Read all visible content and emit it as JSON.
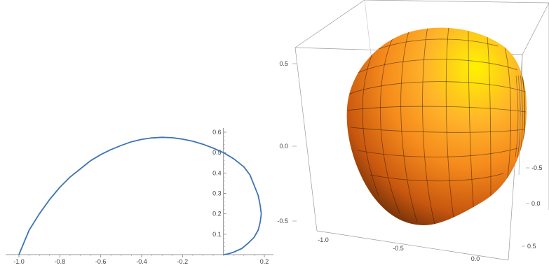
{
  "chart_data": [
    {
      "type": "line",
      "xlim": [
        -1.0,
        0.22
      ],
      "ylim": [
        0,
        0.6
      ],
      "xticks": [
        "-1.0",
        "-0.8",
        "-0.6",
        "-0.4",
        "-0.2",
        "0.2"
      ],
      "yticks": [
        "0.1",
        "0.2",
        "0.3",
        "0.4",
        "0.5",
        "0.6"
      ],
      "color": "#3d74b4",
      "series": [
        {
          "x": [
            -1.0,
            -0.95,
            -0.9,
            -0.85,
            -0.8,
            -0.75,
            -0.7,
            -0.65,
            -0.6,
            -0.55,
            -0.5,
            -0.45,
            -0.4,
            -0.35,
            -0.3,
            -0.25,
            -0.2,
            -0.15,
            -0.1,
            -0.05,
            0.0,
            0.05,
            0.1,
            0.13,
            0.15,
            0.17,
            0.18,
            0.185,
            0.18,
            0.17,
            0.15,
            0.12,
            0.09,
            0.05,
            0.02,
            0.0
          ],
          "y": [
            0.0,
            0.12,
            0.2,
            0.27,
            0.33,
            0.38,
            0.42,
            0.46,
            0.49,
            0.515,
            0.535,
            0.553,
            0.565,
            0.572,
            0.575,
            0.573,
            0.566,
            0.556,
            0.541,
            0.522,
            0.5,
            0.47,
            0.43,
            0.39,
            0.34,
            0.29,
            0.24,
            0.2,
            0.16,
            0.12,
            0.085,
            0.055,
            0.03,
            0.012,
            0.003,
            0.0
          ]
        }
      ]
    },
    {
      "type": "surface3d",
      "axis_labels": {
        "vertical": [
          "0.5",
          "0.0",
          "-0.5"
        ],
        "bottom_left": [
          "-1.0",
          "-0.5",
          "0.0"
        ],
        "right": [
          "-0.5",
          "0.0",
          "0.5"
        ]
      },
      "surface_colors": [
        "#fff200",
        "#ffb42a",
        "#f58a1c",
        "#c8570f",
        "#5a2608"
      ],
      "box_color": "#9a9a9a"
    }
  ]
}
